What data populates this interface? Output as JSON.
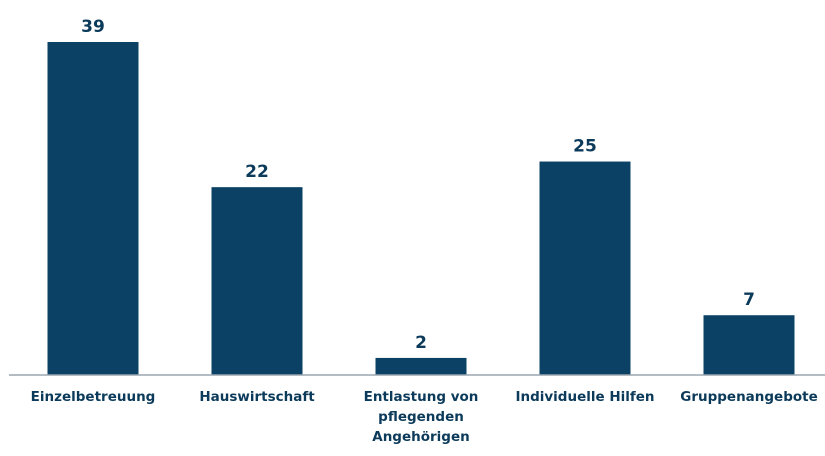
{
  "chart_data": {
    "type": "bar",
    "categories": [
      "Einzelbetreuung",
      "Hauswirtschaft",
      "Entlastung von pflegenden Angehörigen",
      "Individuelle Hilfen",
      "Gruppenangebote"
    ],
    "values": [
      39,
      22,
      2,
      25,
      7
    ],
    "color": "#0b4165"
  }
}
